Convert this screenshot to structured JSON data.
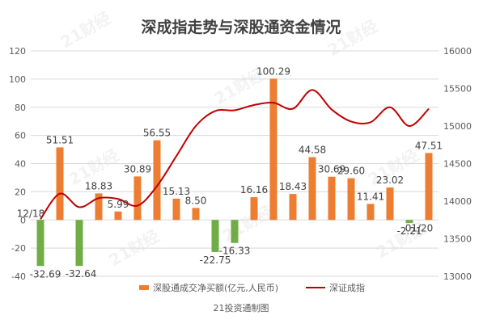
{
  "chart_data": {
    "type": "bar+line",
    "title": "深成指走势与深股通资金情况",
    "source_note": "21投资通制图",
    "watermark": "21财经",
    "left_axis": {
      "ylim": [
        -40,
        120
      ],
      "ticks": [
        -40,
        -20,
        0,
        20,
        40,
        60,
        80,
        100,
        120
      ]
    },
    "right_axis": {
      "ylim": [
        13000,
        16000
      ],
      "ticks": [
        13000,
        13500,
        14000,
        14500,
        15000,
        15500,
        16000
      ]
    },
    "grid": true,
    "legend_position": "bottom",
    "date_labels": [
      {
        "index": 0,
        "text": "12/18"
      },
      {
        "index": 21,
        "text": "01/20"
      }
    ],
    "series": [
      {
        "name": "深股通成交净买额(亿元,人民币)",
        "type": "bar",
        "axis": "left",
        "color": "#ed7d31",
        "negative_color": "#70ad47",
        "values": [
          -32.69,
          51.51,
          -32.64,
          18.83,
          5.99,
          30.89,
          56.55,
          15.13,
          8.5,
          -22.75,
          -16.33,
          16.16,
          100.29,
          18.43,
          44.58,
          30.69,
          29.6,
          11.41,
          23.02,
          -2.21,
          47.51
        ],
        "labels": [
          "-32.69",
          "51.51",
          "-32.64",
          "18.83",
          "5.99",
          "30.89",
          "56.55",
          "15.13",
          "8.50",
          "-22.75",
          "-16.33",
          "16.16",
          "100.29",
          "18.43",
          "44.58",
          "30.69",
          "29.60",
          "11.41",
          "23.02",
          "-2.21",
          "47.51"
        ]
      },
      {
        "name": "深证成指",
        "type": "line",
        "axis": "right",
        "color": "#c00000",
        "values": [
          13760,
          14100,
          13920,
          14040,
          14030,
          13940,
          14200,
          14600,
          15000,
          15200,
          15210,
          15280,
          15310,
          15230,
          15480,
          15220,
          15060,
          15050,
          15250,
          15000,
          15230
        ]
      }
    ]
  }
}
